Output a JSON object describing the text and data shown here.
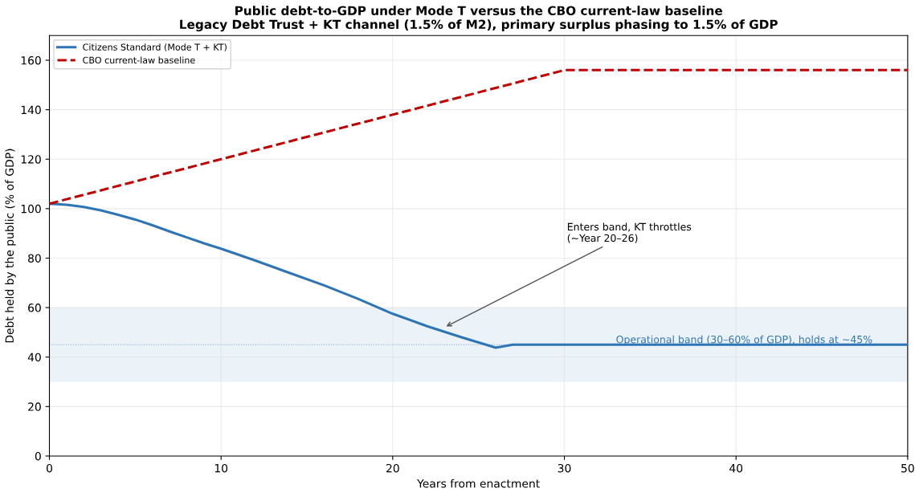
{
  "chart_data": {
    "type": "line",
    "title": "Public debt-to-GDP under Mode T versus the CBO current-law baseline\nLegacy Debt Trust + KT channel (1.5% of M2), primary surplus phasing to 1.5% of GDP",
    "xlabel": "Years from enactment",
    "ylabel": "Debt held by the public (% of GDP)",
    "series": [
      {
        "name": "Citizens Standard (Mode T + KT)",
        "color": "#2e75b6",
        "line_style": "solid",
        "x": [
          0,
          1,
          2,
          3,
          4,
          5,
          6,
          7,
          8,
          9,
          10,
          12,
          14,
          16,
          18,
          20,
          22,
          24,
          26,
          27,
          30,
          40,
          50
        ],
        "values": [
          102,
          101.6,
          100.7,
          99.3,
          97.5,
          95.6,
          93.3,
          90.8,
          88.4,
          86,
          83.8,
          79,
          74,
          69,
          63.5,
          57.5,
          52.5,
          48,
          43.8,
          45,
          45,
          45,
          45
        ]
      },
      {
        "name": "CBO current-law baseline",
        "color": "#c00000",
        "line_style": "dashed",
        "x": [
          0,
          30,
          50
        ],
        "values": [
          102,
          156,
          156
        ]
      }
    ],
    "xlim": [
      0,
      50
    ],
    "xticks": [
      0,
      10,
      20,
      30,
      40,
      50
    ],
    "ylim": [
      0,
      170
    ],
    "yticks": [
      0,
      20,
      40,
      60,
      80,
      100,
      120,
      140,
      160
    ],
    "bands": [
      {
        "axis": "y",
        "from": 30,
        "to": 60,
        "label": "Operational band (30–60% of GDP), holds at ~45%",
        "color": "#2e75b6"
      }
    ],
    "ref_lines": [
      {
        "axis": "y",
        "value": 45,
        "color": "#2e75b6",
        "line_style": "dotted"
      }
    ],
    "annotations": [
      {
        "text": "Enters band, KT throttles\n(~Year 20–26)",
        "x": 23,
        "y": 52
      }
    ],
    "grid": true,
    "legend": "top left",
    "marker": "none"
  }
}
